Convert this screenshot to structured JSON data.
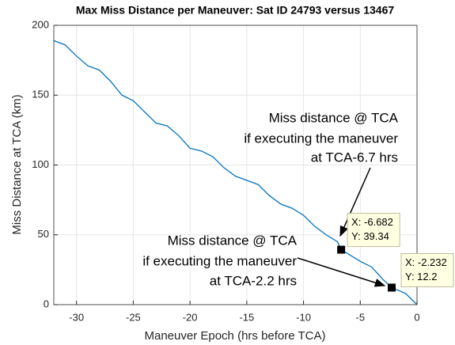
{
  "chart_data": {
    "type": "line",
    "title": "Max Miss Distance per Maneuver: Sat ID 24793 versus 13467",
    "xlabel": "Maneuver Epoch (hrs before TCA)",
    "ylabel": "Miss Distance at TCA (km)",
    "x": [
      -32,
      -31,
      -30,
      -29,
      -28,
      -27,
      -26,
      -25,
      -24,
      -23,
      -22,
      -21,
      -20,
      -19,
      -18,
      -17,
      -16,
      -15,
      -14,
      -13,
      -12,
      -11,
      -10,
      -9,
      -8,
      -7,
      -6.682,
      -6,
      -5,
      -4,
      -3,
      -2.232,
      -1,
      0
    ],
    "series": [
      {
        "name": "Miss Distance",
        "color": "#0072bd",
        "values": [
          189,
          186,
          178,
          171,
          168,
          160,
          150,
          146,
          138,
          130,
          128,
          121,
          112,
          110,
          106,
          98,
          92,
          89,
          86,
          78,
          72,
          69,
          64,
          56,
          50,
          45,
          39.34,
          36,
          31,
          27,
          18,
          12.2,
          8,
          0
        ]
      }
    ],
    "xlim": [
      -32,
      0
    ],
    "ylim": [
      0,
      200
    ],
    "xticks": [
      -30,
      -25,
      -20,
      -15,
      -10,
      -5,
      0
    ],
    "yticks": [
      0,
      50,
      100,
      150,
      200
    ],
    "grid": true,
    "annotations": [
      {
        "lines": [
          "Miss distance @ TCA",
          "if executing the maneuver",
          "at TCA-6.7 hrs"
        ]
      },
      {
        "lines": [
          "Miss distance @ TCA",
          "if executing the maneuver",
          "at TCA-2.2 hrs"
        ]
      }
    ],
    "datatips": [
      {
        "x": -6.682,
        "y": 39.34,
        "x_label": "X: -6.682",
        "y_label": "Y: 39.34"
      },
      {
        "x": -2.232,
        "y": 12.2,
        "x_label": "X: -2.232",
        "y_label": "Y: 12.2"
      }
    ]
  }
}
